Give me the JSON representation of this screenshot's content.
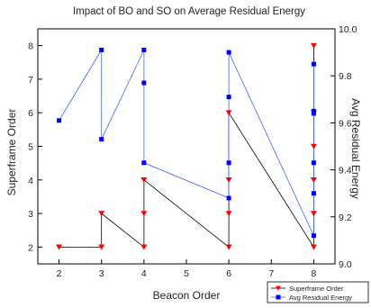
{
  "chart_data": {
    "type": "line",
    "title": "Impact of BO and SO on Average Residual Energy",
    "xlabel": "Beacon Order",
    "ylabel_left": "Superframe Order",
    "ylabel_right": "Avg Residual Energy",
    "xlim": [
      1.5,
      8.5
    ],
    "ylim_left": [
      1.5,
      8.5
    ],
    "ylim_right": [
      9.0,
      10.0
    ],
    "x_ticks": [
      "2",
      "3",
      "4",
      "5",
      "6",
      "7",
      "8"
    ],
    "y_left_ticks": [
      "2",
      "3",
      "4",
      "5",
      "6",
      "7",
      "8"
    ],
    "y_right_ticks": [
      "9.0",
      "9.2",
      "9.4",
      "9.6",
      "9.8",
      "10.0"
    ],
    "grid": false,
    "legend_position": "bottom-right",
    "series": [
      {
        "name": "Superframe Order",
        "axis": "left",
        "color": "#ff0000",
        "line_color": "#000000",
        "marker": "triangle-down",
        "x": [
          2,
          3,
          3,
          4,
          4,
          4,
          6,
          6,
          6,
          6,
          8,
          8,
          8,
          8,
          8,
          8
        ],
        "y": [
          2,
          2,
          3,
          2,
          3,
          4,
          2,
          3,
          4,
          6,
          2,
          3,
          4,
          5,
          6,
          8
        ]
      },
      {
        "name": "Avg Residual Energy",
        "axis": "right",
        "color": "#0000ff",
        "line_color": "#4466ff",
        "marker": "square",
        "x": [
          2,
          3,
          3,
          4,
          4,
          4,
          6,
          6,
          6,
          6,
          8,
          8,
          8,
          8,
          8,
          8
        ],
        "y": [
          9.61,
          9.91,
          9.53,
          9.91,
          9.77,
          9.43,
          9.28,
          9.43,
          9.71,
          9.9,
          9.12,
          9.3,
          9.43,
          9.64,
          9.65,
          9.85
        ]
      }
    ]
  }
}
